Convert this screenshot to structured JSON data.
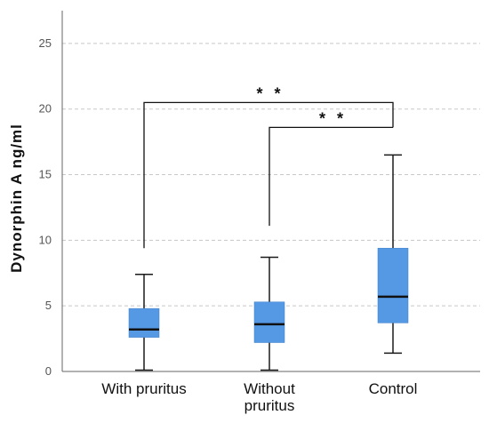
{
  "chart_data": {
    "type": "box",
    "title": "",
    "xlabel": "",
    "ylabel": "Dynorphin A ng/ml",
    "ylim": [
      0,
      27.5
    ],
    "yticks": [
      0,
      5,
      10,
      15,
      20,
      25
    ],
    "grid": true,
    "categories": [
      {
        "lines": [
          "With pruritus"
        ]
      },
      {
        "lines": [
          "Without",
          "pruritus"
        ]
      },
      {
        "lines": [
          "Control"
        ]
      }
    ],
    "boxes": [
      {
        "min": 0.1,
        "q1": 2.6,
        "median": 3.2,
        "q3": 4.8,
        "max": 7.4
      },
      {
        "min": 0.1,
        "q1": 2.2,
        "median": 3.6,
        "q3": 5.3,
        "max": 8.7
      },
      {
        "min": 1.4,
        "q1": 3.7,
        "median": 5.7,
        "q3": 9.4,
        "max": 16.5
      }
    ],
    "significance": [
      {
        "from": 0,
        "to": 2,
        "label": "* *",
        "bar_y": 20.5,
        "left_y": 9.4,
        "right_y": 18.6
      },
      {
        "from": 1,
        "to": 2,
        "label": "* *",
        "bar_y": 18.6,
        "left_y": 11.1,
        "right_y": 18.6
      }
    ],
    "colors": {
      "box": "#5598e4",
      "whisker": "#1a1a1a",
      "grid": "#c8c8c8",
      "axis": "#666666"
    }
  }
}
